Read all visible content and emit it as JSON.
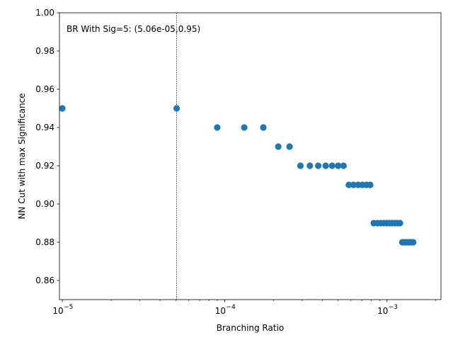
{
  "chart_data": {
    "type": "scatter",
    "xlabel": "Branching Ratio",
    "ylabel": "NN Cut with max Significance",
    "xscale": "log",
    "xlim": [
      9.6e-06,
      0.00215
    ],
    "ylim": [
      0.85,
      1.0
    ],
    "grid": false,
    "marker_color": "#1f77b4",
    "annotation": "BR With Sig=5: (5.06e-05,0.95)",
    "vline_x": 5.06e-05,
    "x_ticks": [
      {
        "value": 1e-05,
        "base": "10",
        "exp": "−5"
      },
      {
        "value": 0.0001,
        "base": "10",
        "exp": "−4"
      },
      {
        "value": 0.001,
        "base": "10",
        "exp": "−3"
      }
    ],
    "y_ticks": [
      "0.86",
      "0.88",
      "0.90",
      "0.92",
      "0.94",
      "0.96",
      "0.98",
      "1.00"
    ],
    "points": [
      {
        "x": 1e-05,
        "y": 0.95
      },
      {
        "x": 5.06e-05,
        "y": 0.95
      },
      {
        "x": 9e-05,
        "y": 0.94
      },
      {
        "x": 0.000132,
        "y": 0.94
      },
      {
        "x": 0.000173,
        "y": 0.94
      },
      {
        "x": 0.000214,
        "y": 0.93
      },
      {
        "x": 0.000251,
        "y": 0.93
      },
      {
        "x": 0.000293,
        "y": 0.92
      },
      {
        "x": 0.000335,
        "y": 0.92
      },
      {
        "x": 0.000377,
        "y": 0.92
      },
      {
        "x": 0.000419,
        "y": 0.92
      },
      {
        "x": 0.000459,
        "y": 0.92
      },
      {
        "x": 0.0005,
        "y": 0.92
      },
      {
        "x": 0.00054,
        "y": 0.92
      },
      {
        "x": 0.000582,
        "y": 0.91
      },
      {
        "x": 0.000622,
        "y": 0.91
      },
      {
        "x": 0.000664,
        "y": 0.91
      },
      {
        "x": 0.000706,
        "y": 0.91
      },
      {
        "x": 0.000748,
        "y": 0.91
      },
      {
        "x": 0.000788,
        "y": 0.91
      },
      {
        "x": 0.000829,
        "y": 0.89
      },
      {
        "x": 0.000872,
        "y": 0.89
      },
      {
        "x": 0.000912,
        "y": 0.89
      },
      {
        "x": 0.000954,
        "y": 0.89
      },
      {
        "x": 0.000995,
        "y": 0.89
      },
      {
        "x": 0.001036,
        "y": 0.89
      },
      {
        "x": 0.001078,
        "y": 0.89
      },
      {
        "x": 0.00112,
        "y": 0.89
      },
      {
        "x": 0.001161,
        "y": 0.89
      },
      {
        "x": 0.001202,
        "y": 0.89
      },
      {
        "x": 0.001243,
        "y": 0.88
      },
      {
        "x": 0.001285,
        "y": 0.88
      },
      {
        "x": 0.001326,
        "y": 0.88
      },
      {
        "x": 0.001368,
        "y": 0.88
      },
      {
        "x": 0.001408,
        "y": 0.88
      },
      {
        "x": 0.00145,
        "y": 0.88
      }
    ]
  }
}
